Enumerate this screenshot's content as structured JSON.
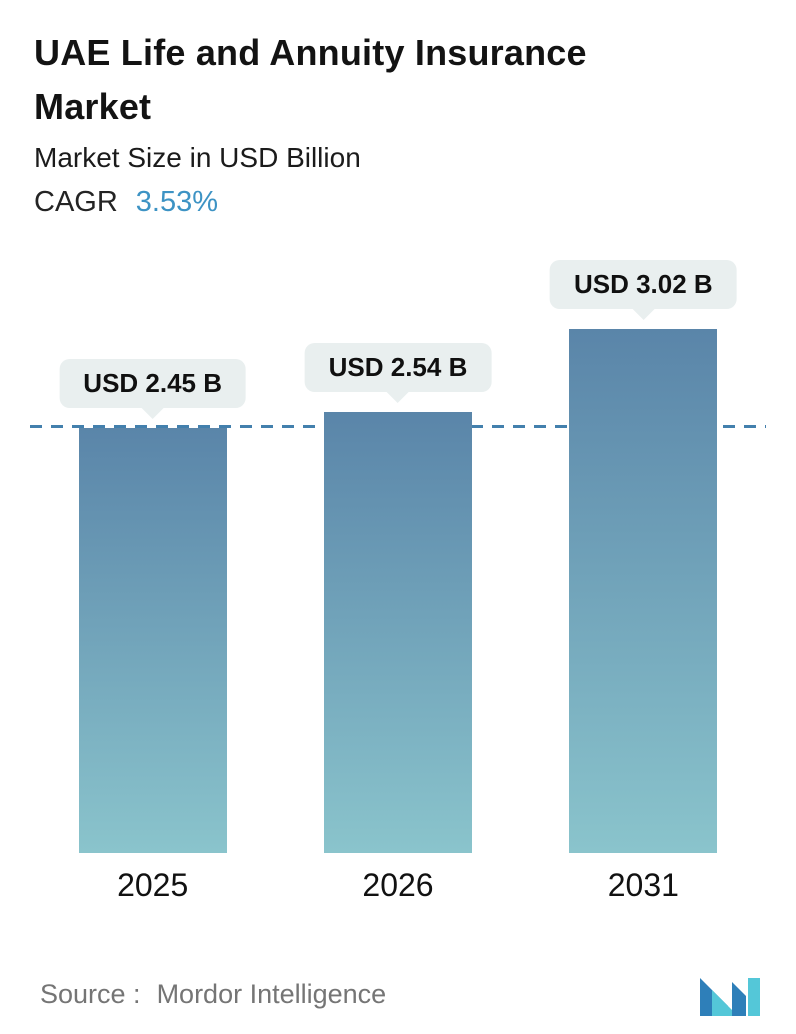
{
  "header": {
    "title": "UAE Life and Annuity Insurance Market",
    "subtitle": "Market Size in USD Billion",
    "cagr_label": "CAGR",
    "cagr_value": "3.53%"
  },
  "colors": {
    "accent": "#3d93c4",
    "bar_top": "#5a85a9",
    "bar_bottom": "#8ac4cc",
    "badge_bg": "#e9efef",
    "ref_line": "#4380ad",
    "logo_dark": "#2e7fb9",
    "logo_light": "#54c7d8"
  },
  "chart_data": {
    "type": "bar",
    "title": "UAE Life and Annuity Insurance Market",
    "subtitle": "Market Size in USD Billion",
    "unit": "USD Billion",
    "cagr_percent": 3.53,
    "categories": [
      "2025",
      "2026",
      "2031"
    ],
    "values": [
      2.45,
      2.54,
      3.02
    ],
    "value_labels": [
      "USD 2.45 B",
      "USD 2.54 B",
      "USD 3.02 B"
    ],
    "ylim": [
      0,
      3.4
    ],
    "grid": false,
    "legend": false,
    "reference_line": {
      "value": 2.45,
      "style": "dashed"
    }
  },
  "footer": {
    "source_label": "Source :",
    "source_value": "Mordor Intelligence"
  }
}
